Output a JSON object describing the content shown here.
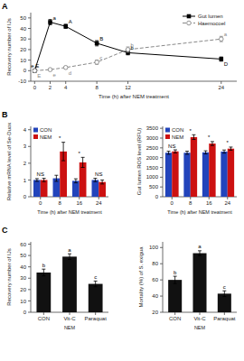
{
  "chart_data": [
    {
      "type": "line",
      "title": "A",
      "x": [
        0,
        2,
        4,
        8,
        12,
        24
      ],
      "xlim": [
        -0.5,
        26
      ],
      "xticks": [
        0,
        2,
        4,
        8,
        12,
        24
      ],
      "ylim": [
        -10,
        55
      ],
      "yticks": [
        -10,
        0,
        10,
        20,
        30,
        40,
        50
      ],
      "xlabel": "Time (h) after NEM treatment",
      "ylabel": "Recovery number of IJs",
      "legend": "upper right",
      "series": [
        {
          "name": "Gut lumen",
          "color": "black",
          "marker": "square",
          "line_style": "solid",
          "values": [
            0,
            46,
            42,
            26,
            17,
            11
          ],
          "errors": [
            0.5,
            2.5,
            2.0,
            2.5,
            2.0,
            2.0
          ],
          "point_labels": [
            "e,E",
            "a",
            "A",
            "B",
            "b",
            "D"
          ]
        },
        {
          "name": "Haemocoel",
          "color": "#888888",
          "marker": "circle",
          "line_style": "dashed",
          "values": [
            0,
            1,
            3,
            8,
            20,
            30
          ],
          "errors": [
            0.5,
            0.5,
            1.0,
            2.0,
            2.5,
            2.5
          ],
          "point_labels": [
            "E",
            "e",
            "d",
            "c",
            "b",
            "a"
          ]
        }
      ]
    },
    {
      "type": "bar",
      "title": "B",
      "categories": [
        "0",
        "8",
        "16",
        "24"
      ],
      "series": [
        {
          "name": "CON",
          "color": "#2244bb",
          "values": [
            1.0,
            1.1,
            0.95,
            1.0
          ],
          "errors": [
            0.08,
            0.18,
            0.12,
            0.1
          ]
        },
        {
          "name": "NEM",
          "color": "#cc1111",
          "values": [
            1.0,
            2.7,
            2.05,
            0.88
          ],
          "errors": [
            0.1,
            0.55,
            0.3,
            0.12
          ]
        }
      ],
      "annotations": [
        "NS",
        "*",
        "*",
        "NS"
      ],
      "xlabel": "Time (h) after NEM treatment",
      "ylabel": "Relative mRNA level of Se-Duox",
      "ylim": [
        0,
        4.2
      ],
      "yticks": [
        0,
        1,
        2,
        3,
        4
      ],
      "legend": "upper left"
    },
    {
      "type": "bar",
      "categories": [
        "0",
        "8",
        "16",
        "24"
      ],
      "series": [
        {
          "name": "CON",
          "color": "#2244bb",
          "values": [
            2250,
            2250,
            2270,
            2310
          ],
          "errors": [
            80,
            80,
            80,
            80
          ]
        },
        {
          "name": "NEM",
          "color": "#cc1111",
          "values": [
            2320,
            3050,
            2720,
            2460
          ],
          "errors": [
            80,
            120,
            100,
            80
          ]
        }
      ],
      "annotations": [
        "NS",
        "*",
        "*",
        "*"
      ],
      "xlabel": "Time (h) after NEM treatment",
      "ylabel": "Gut lumen ROS level (RFU)",
      "ylim": [
        0,
        3600
      ],
      "yticks": [
        0,
        500,
        1000,
        1500,
        2000,
        2500,
        3000,
        3500
      ],
      "legend": "upper left"
    },
    {
      "type": "bar",
      "title": "C",
      "categories": [
        "CON",
        "Vit-C",
        "Paraquat"
      ],
      "values": [
        35,
        49,
        25
      ],
      "errors": [
        3.0,
        2.5,
        2.5
      ],
      "annotations": [
        "b",
        "a",
        "c"
      ],
      "color": "#111111",
      "xlabel": "NEM",
      "ylabel": "Recovery number of IJs",
      "ylim": [
        0,
        62
      ],
      "yticks": [
        0,
        10,
        20,
        30,
        40,
        50,
        60
      ]
    },
    {
      "type": "bar",
      "categories": [
        "CON",
        "Vit-C",
        "Paraquat"
      ],
      "values": [
        60,
        93,
        43
      ],
      "errors": [
        4.5,
        3.0,
        3.5
      ],
      "annotations": [
        "b",
        "a",
        "c"
      ],
      "color": "#111111",
      "xlabel": "NEM",
      "ylabel": "Mortality (%) of S. exigua",
      "ylim": [
        20,
        107
      ],
      "yticks": [
        20,
        40,
        60,
        80,
        100
      ]
    }
  ]
}
